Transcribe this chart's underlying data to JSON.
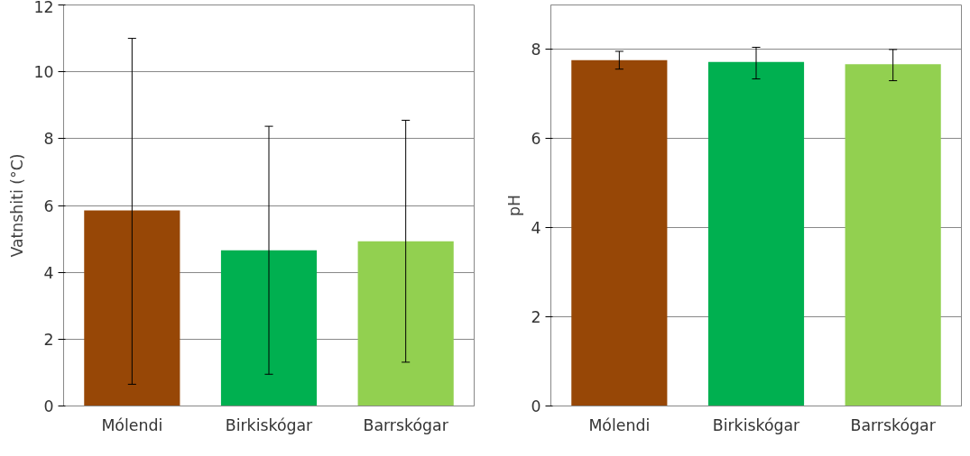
{
  "chart_data": [
    {
      "type": "bar",
      "ylabel": "Vatnshiti (°C)",
      "categories": [
        "Mólendi",
        "Birkiskógar",
        "Barrskógar"
      ],
      "values": [
        5.85,
        4.66,
        4.93
      ],
      "colors": [
        "#974706",
        "#00b050",
        "#92d050"
      ],
      "errors": [
        [
          0.65,
          11.0
        ],
        [
          0.95,
          8.37
        ],
        [
          1.31,
          8.55
        ]
      ],
      "ylim": [
        0,
        12
      ],
      "yticks": [
        0,
        2,
        4,
        6,
        8,
        10,
        12
      ],
      "grid": "y"
    },
    {
      "type": "bar",
      "ylabel": "pH",
      "categories": [
        "Mólendi",
        "Birkiskógar",
        "Barrskógar"
      ],
      "values": [
        7.76,
        7.72,
        7.67
      ],
      "colors": [
        "#974706",
        "#00b050",
        "#92d050"
      ],
      "errors": [
        [
          7.56,
          7.96
        ],
        [
          7.34,
          8.05
        ],
        [
          7.3,
          8.0
        ]
      ],
      "ylim": [
        0,
        9
      ],
      "yticks": [
        0,
        2,
        4,
        6,
        8
      ],
      "grid": "y"
    }
  ]
}
